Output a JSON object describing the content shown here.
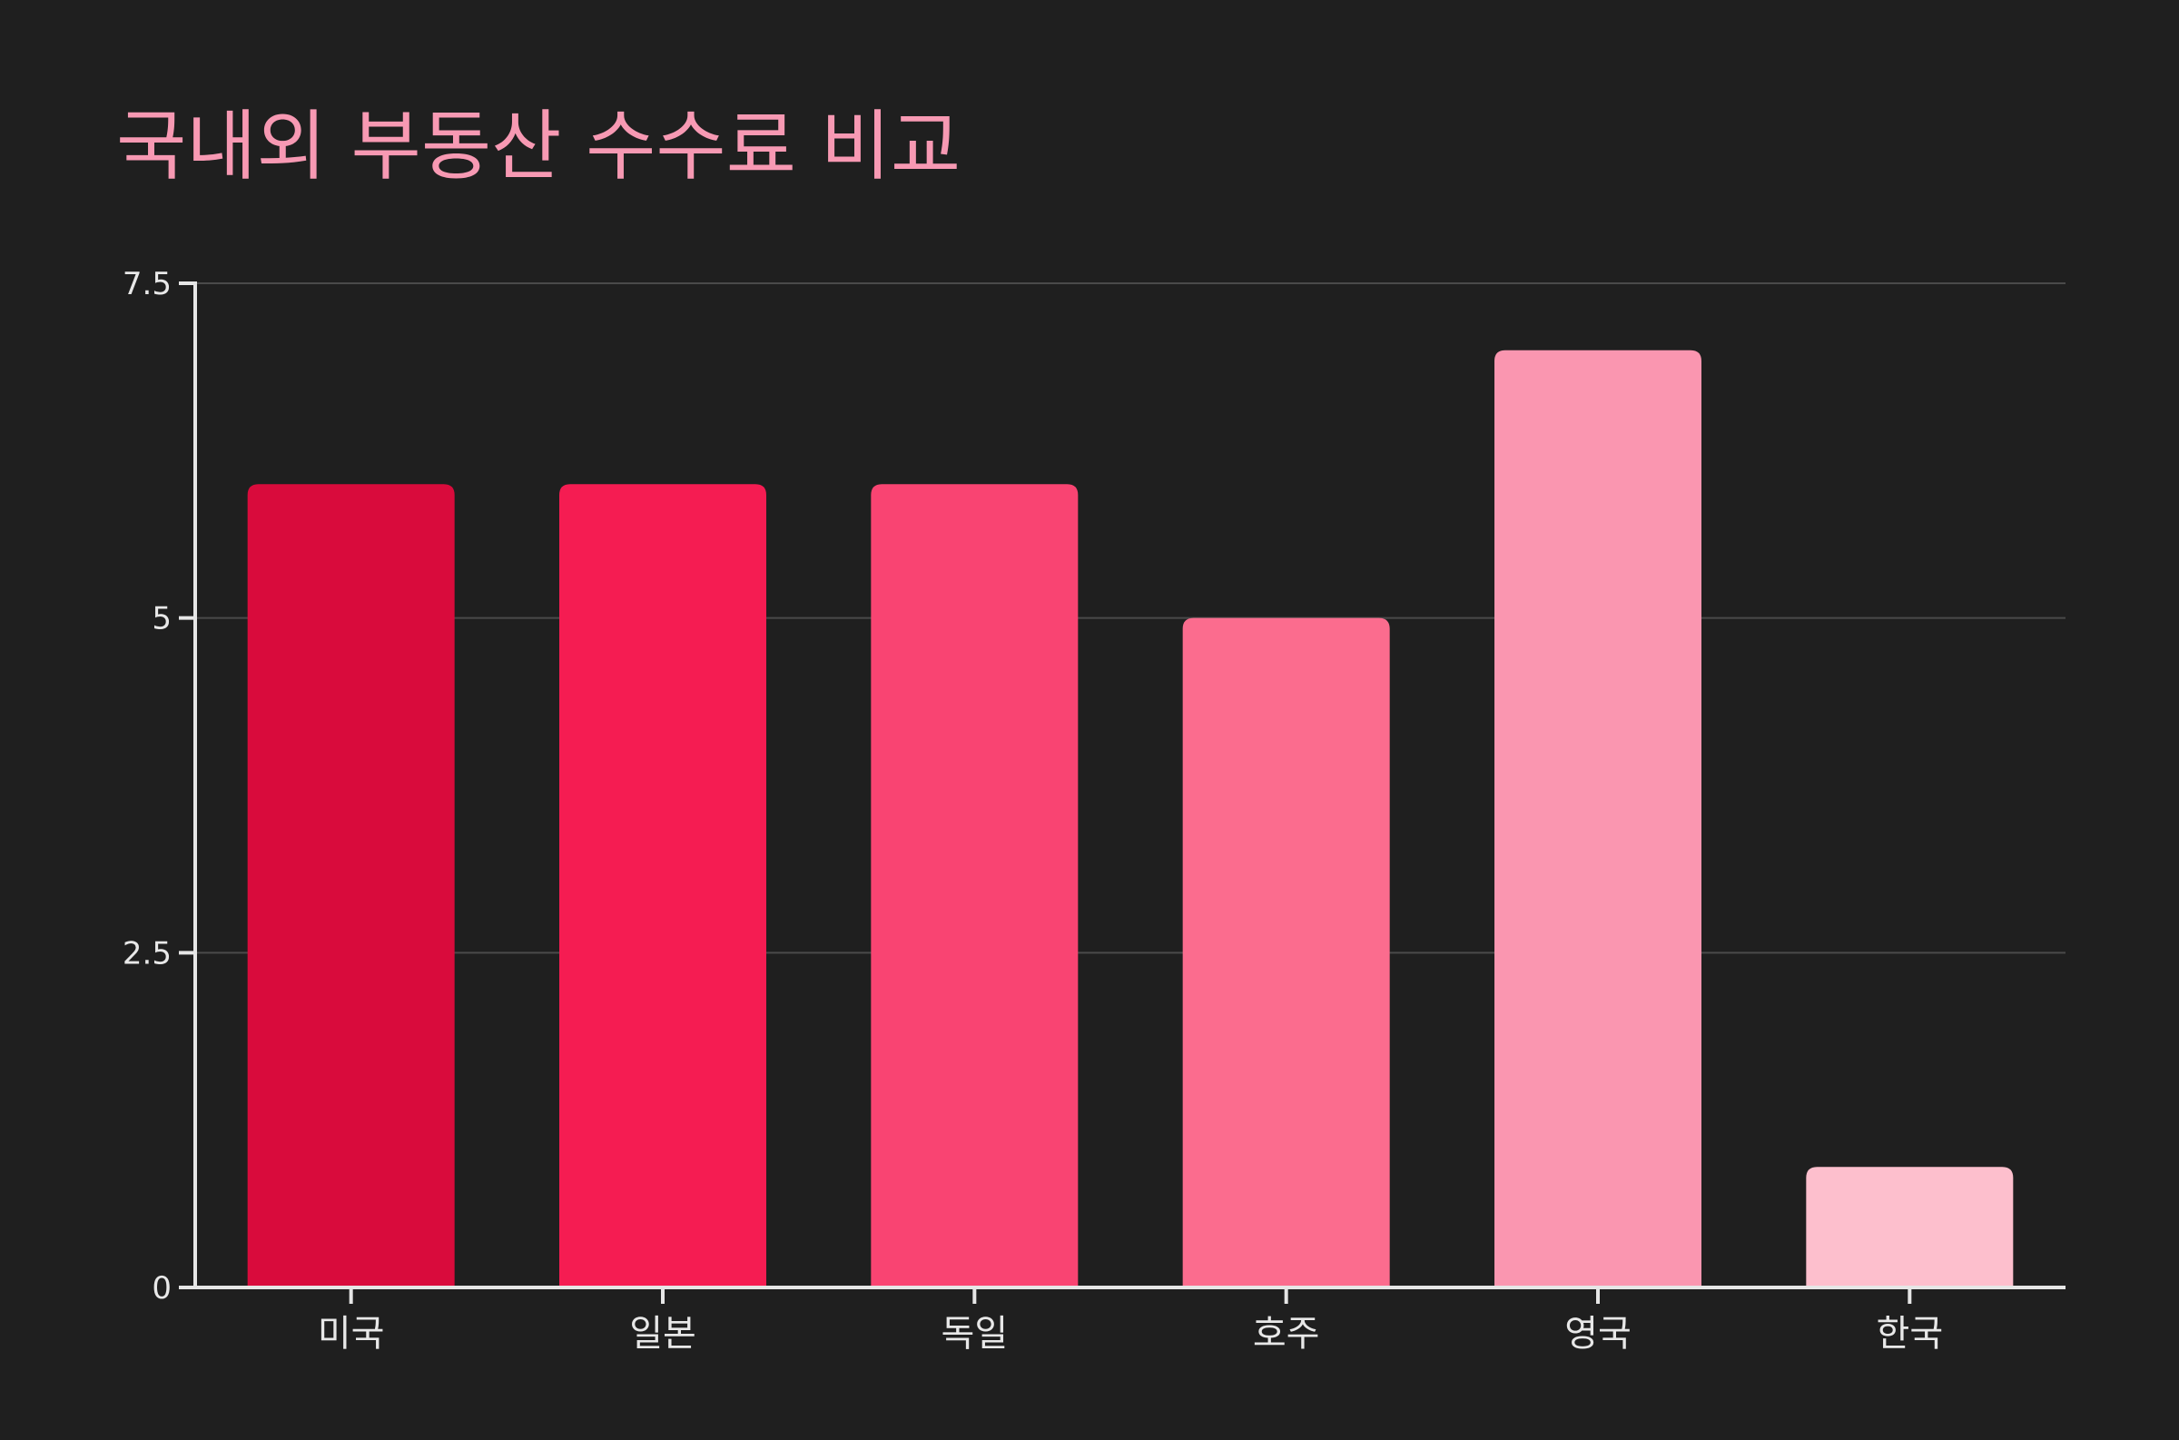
{
  "chart_data": {
    "type": "bar",
    "title": "국내외 부동산 수수료 비교",
    "xlabel": "",
    "ylabel": "",
    "categories": [
      "미국",
      "일본",
      "독일",
      "호주",
      "영국",
      "한국"
    ],
    "values": [
      6,
      6,
      6,
      5,
      7,
      0.9
    ],
    "ylim": [
      0,
      7.5
    ],
    "yticks": [
      0,
      2.5,
      5,
      7.5
    ],
    "ytick_labels": [
      "0",
      "2.5",
      "5",
      "7.5"
    ],
    "grid": true,
    "legend": "none",
    "colors": {
      "background": "#1f1f1f",
      "title": "#f799b3",
      "axis": "#e6e6e6",
      "grid": "#4a4a4a",
      "bars": [
        "#d90b3c",
        "#f51c52",
        "#f94472",
        "#fb6c8e",
        "#fa96b0",
        "#fdbfcd"
      ]
    }
  }
}
